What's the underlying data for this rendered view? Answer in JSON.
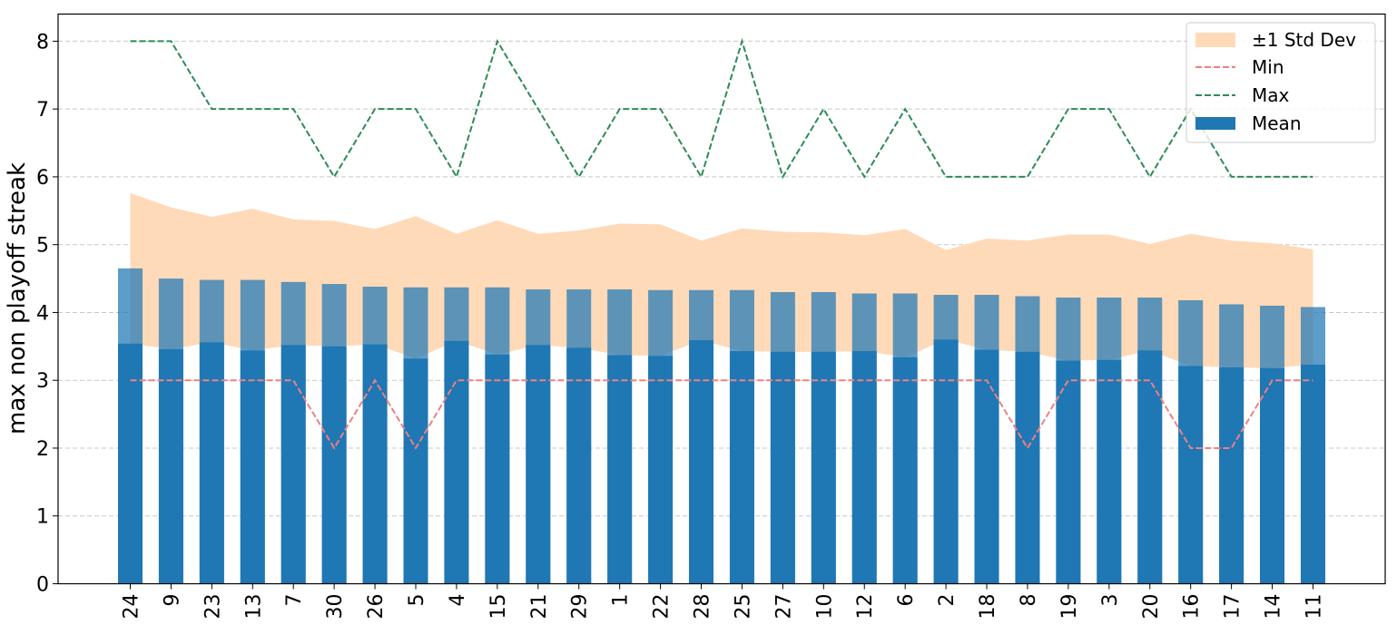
{
  "chart_data": {
    "type": "bar",
    "title": "",
    "xlabel": "",
    "ylabel": "max non playoff streak",
    "ylim": [
      0,
      8.4
    ],
    "yticks": [
      "0",
      "1",
      "2",
      "3",
      "4",
      "5",
      "6",
      "7",
      "8"
    ],
    "grid": "y-dashed",
    "legend_position": "top-right",
    "categories": [
      "24",
      "9",
      "23",
      "13",
      "7",
      "30",
      "26",
      "5",
      "4",
      "15",
      "21",
      "29",
      "1",
      "22",
      "28",
      "25",
      "27",
      "10",
      "12",
      "6",
      "2",
      "18",
      "8",
      "19",
      "3",
      "20",
      "16",
      "17",
      "14",
      "11"
    ],
    "series": [
      {
        "name": "Mean",
        "kind": "bar",
        "color": "#1f77b4",
        "values": [
          4.65,
          4.5,
          4.48,
          4.48,
          4.45,
          4.42,
          4.38,
          4.37,
          4.37,
          4.37,
          4.34,
          4.34,
          4.34,
          4.33,
          4.33,
          4.33,
          4.3,
          4.3,
          4.28,
          4.28,
          4.26,
          4.26,
          4.24,
          4.22,
          4.22,
          4.22,
          4.18,
          4.12,
          4.1,
          4.08
        ]
      },
      {
        "name": "±1 Std Dev",
        "kind": "band",
        "color": "#ffdab9",
        "upper": [
          5.76,
          5.55,
          5.41,
          5.53,
          5.37,
          5.35,
          5.23,
          5.42,
          5.16,
          5.36,
          5.16,
          5.21,
          5.31,
          5.3,
          5.06,
          5.24,
          5.19,
          5.18,
          5.14,
          5.23,
          4.92,
          5.09,
          5.06,
          5.15,
          5.15,
          5.01,
          5.16,
          5.06,
          5.02,
          4.93
        ],
        "lower": [
          3.54,
          3.46,
          3.56,
          3.44,
          3.52,
          3.5,
          3.53,
          3.32,
          3.58,
          3.38,
          3.52,
          3.48,
          3.37,
          3.36,
          3.59,
          3.43,
          3.42,
          3.42,
          3.43,
          3.34,
          3.6,
          3.45,
          3.42,
          3.29,
          3.3,
          3.44,
          3.21,
          3.19,
          3.18,
          3.23
        ]
      },
      {
        "name": "Min",
        "kind": "line",
        "style": "dashed",
        "color": "#f08080",
        "values": [
          3,
          3,
          3,
          3,
          3,
          2,
          3,
          2,
          3,
          3,
          3,
          3,
          3,
          3,
          3,
          3,
          3,
          3,
          3,
          3,
          3,
          3,
          2,
          3,
          3,
          3,
          2,
          2,
          3,
          3
        ]
      },
      {
        "name": "Max",
        "kind": "line",
        "style": "dashed",
        "color": "#2e8b57",
        "values": [
          8,
          8,
          7,
          7,
          7,
          6,
          7,
          7,
          6,
          8,
          7,
          6,
          7,
          7,
          6,
          8,
          6,
          7,
          6,
          7,
          6,
          6,
          6,
          7,
          7,
          6,
          7,
          6,
          6,
          6
        ]
      }
    ],
    "legend": [
      "±1 Std Dev",
      "Min",
      "Max",
      "Mean"
    ]
  }
}
